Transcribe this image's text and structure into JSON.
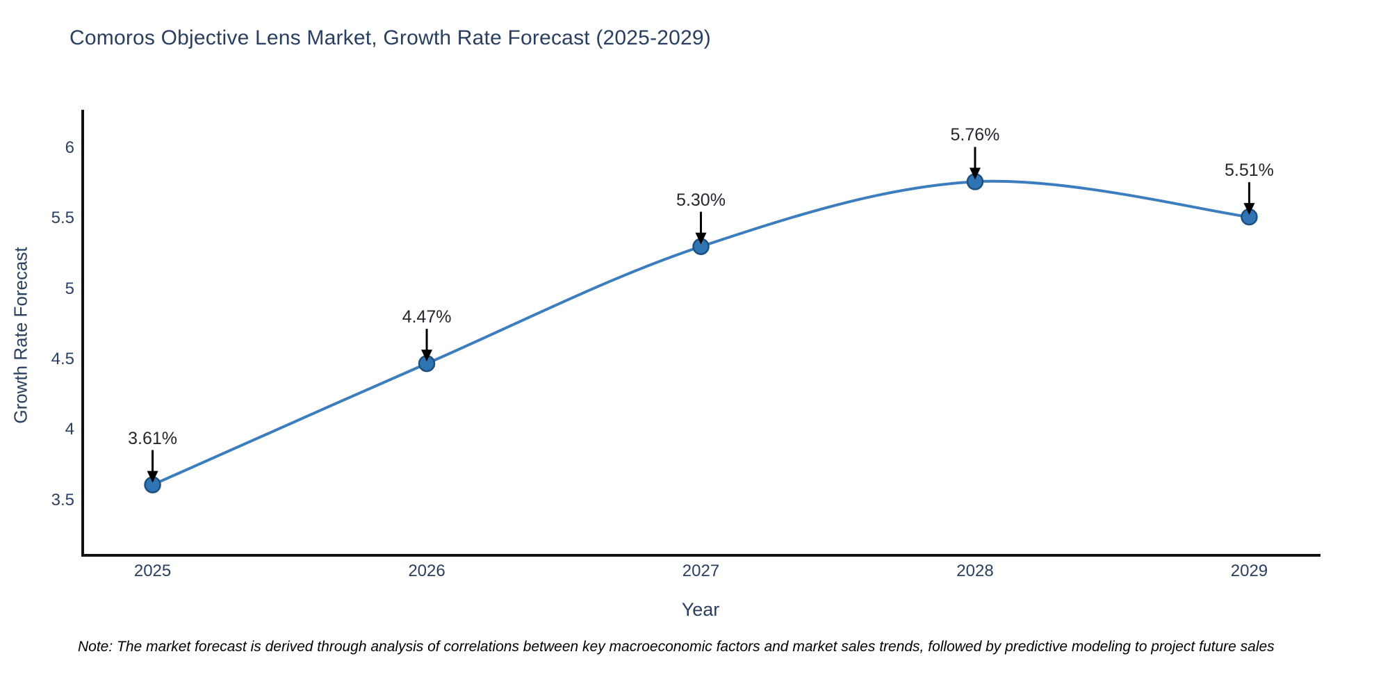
{
  "chart_data": {
    "type": "line",
    "line_shape": "spline",
    "title": "Comoros Objective Lens Market, Growth Rate Forecast (2025-2029)",
    "xlabel": "Year",
    "ylabel": "Growth Rate Forecast",
    "categories": [
      "2025",
      "2026",
      "2027",
      "2028",
      "2029"
    ],
    "series": [
      {
        "name": "Growth Rate Forecast",
        "values": [
          3.61,
          4.47,
          5.3,
          5.76,
          5.51
        ],
        "point_labels": [
          "3.61%",
          "4.47%",
          "5.30%",
          "5.76%",
          "5.51%"
        ]
      }
    ],
    "yticks": [
      3.5,
      4,
      4.5,
      5,
      5.5,
      6
    ],
    "ytick_labels": [
      "3.5",
      "4",
      "4.5",
      "5",
      "5.5",
      "6"
    ],
    "ylim": [
      3.11,
      6.26
    ],
    "xlim_pad_steps": 0.26,
    "grid": false,
    "legend": false,
    "annotations_arrows": "black-down-arrows",
    "colors": {
      "line": "#3c7dbd",
      "marker_fill": "#2f74b3",
      "marker_edge": "#1d4f7f",
      "axis_line": "#111111",
      "axis_text": "#2a3f5f",
      "annotation_text": "#23272f",
      "arrow": "#000000",
      "background": "#ffffff"
    }
  },
  "note": "Note: The market forecast is derived through analysis of correlations between key macroeconomic factors and market sales trends, followed by predictive modeling to project future sales"
}
